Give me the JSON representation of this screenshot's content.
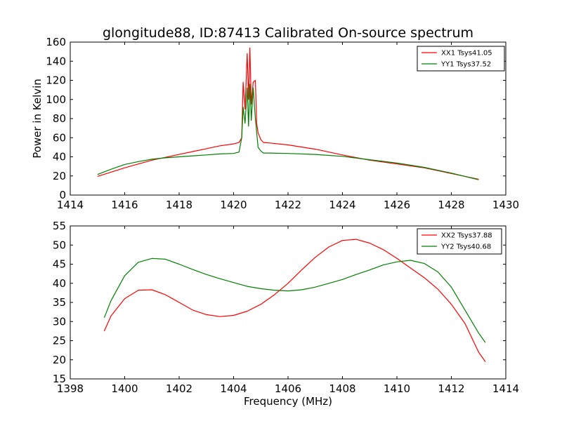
{
  "chart_data": [
    {
      "type": "line",
      "title": "glongitude88, ID:87413 Calibrated On-source spectrum",
      "xlabel": "",
      "ylabel": "Power in Kelvin",
      "xlim": [
        1414,
        1430
      ],
      "ylim": [
        0,
        160
      ],
      "xticks": [
        1414,
        1416,
        1418,
        1420,
        1422,
        1424,
        1426,
        1428,
        1430
      ],
      "yticks": [
        0,
        20,
        40,
        60,
        80,
        100,
        120,
        140,
        160
      ],
      "grid": false,
      "legend_position": "top-right",
      "series": [
        {
          "name": "XX1 Tsys41.05",
          "color": "#ff0000",
          "x": [
            1415.0,
            1415.5,
            1416.0,
            1416.5,
            1417.0,
            1417.5,
            1418.0,
            1418.5,
            1419.0,
            1419.5,
            1420.0,
            1420.2,
            1420.3,
            1420.35,
            1420.42,
            1420.5,
            1420.55,
            1420.6,
            1420.65,
            1420.72,
            1420.8,
            1420.85,
            1420.9,
            1421.0,
            1421.1,
            1421.3,
            1422.0,
            1423.0,
            1424.0,
            1425.0,
            1426.0,
            1427.0,
            1428.0,
            1429.0
          ],
          "y": [
            19.5,
            24,
            28.5,
            32.5,
            36.5,
            39.5,
            42.5,
            45.5,
            48.5,
            51.5,
            53.5,
            55,
            60,
            118,
            90,
            148,
            100,
            154,
            95,
            118,
            120,
            75,
            65,
            58,
            55,
            54.5,
            52.5,
            48,
            42,
            36.5,
            32.5,
            28.5,
            22.5,
            16.5
          ]
        },
        {
          "name": "YY1 Tsys37.52",
          "color": "#008000",
          "x": [
            1415.0,
            1415.5,
            1416.0,
            1416.5,
            1417.0,
            1417.5,
            1418.0,
            1418.5,
            1419.0,
            1419.5,
            1420.0,
            1420.2,
            1420.3,
            1420.35,
            1420.42,
            1420.5,
            1420.55,
            1420.6,
            1420.65,
            1420.72,
            1420.8,
            1420.9,
            1421.0,
            1421.1,
            1421.3,
            1422.0,
            1423.0,
            1424.0,
            1425.0,
            1426.0,
            1427.0,
            1428.0,
            1429.0
          ],
          "y": [
            21.5,
            27,
            32,
            35,
            37.5,
            39,
            40,
            41,
            42,
            43,
            43.5,
            45,
            60,
            92,
            75,
            112,
            72,
            116,
            78,
            112,
            80,
            50,
            46,
            44,
            44,
            43.5,
            42.5,
            40.5,
            37,
            33.5,
            29,
            23,
            16
          ]
        }
      ]
    },
    {
      "type": "line",
      "title": "",
      "xlabel": "Frequency (MHz)",
      "ylabel": "",
      "xlim": [
        1398,
        1414
      ],
      "ylim": [
        15,
        55
      ],
      "xticks": [
        1398,
        1400,
        1402,
        1404,
        1406,
        1408,
        1410,
        1412,
        1414
      ],
      "yticks": [
        15,
        20,
        25,
        30,
        35,
        40,
        45,
        50,
        55
      ],
      "grid": false,
      "legend_position": "top-right",
      "series": [
        {
          "name": "XX2 Tsys37.88",
          "color": "#ff0000",
          "x": [
            1399.25,
            1399.5,
            1400.0,
            1400.5,
            1401.0,
            1401.5,
            1402.0,
            1402.5,
            1403.0,
            1403.5,
            1404.0,
            1404.5,
            1405.0,
            1405.5,
            1406.0,
            1406.5,
            1407.0,
            1407.5,
            1408.0,
            1408.5,
            1409.0,
            1409.5,
            1410.0,
            1410.5,
            1411.0,
            1411.5,
            1412.0,
            1412.5,
            1413.0,
            1413.25
          ],
          "y": [
            27.5,
            31.5,
            36,
            38.2,
            38.3,
            37,
            35,
            33,
            31.8,
            31.3,
            31.6,
            32.7,
            34.5,
            37,
            40,
            43.5,
            46.8,
            49.5,
            51.2,
            51.5,
            50.5,
            48.8,
            46.5,
            44,
            41.5,
            38.5,
            34.5,
            29.5,
            22,
            19.5
          ]
        },
        {
          "name": "YY2 Tsys40.68",
          "color": "#008000",
          "x": [
            1399.25,
            1399.5,
            1400.0,
            1400.5,
            1401.0,
            1401.5,
            1402.0,
            1402.5,
            1403.0,
            1403.5,
            1404.0,
            1404.5,
            1405.0,
            1405.5,
            1406.0,
            1406.5,
            1407.0,
            1407.5,
            1408.0,
            1408.5,
            1409.0,
            1409.5,
            1410.0,
            1410.5,
            1411.0,
            1411.5,
            1412.0,
            1412.5,
            1413.0,
            1413.25
          ],
          "y": [
            31,
            35.5,
            42,
            45.5,
            46.5,
            46.3,
            45,
            43.6,
            42.3,
            41.2,
            40.2,
            39.2,
            38.6,
            38.2,
            38.0,
            38.3,
            39,
            40,
            41,
            42.3,
            43.5,
            44.8,
            45.6,
            46,
            45.2,
            43,
            39,
            33,
            27,
            24.5
          ]
        }
      ]
    }
  ]
}
